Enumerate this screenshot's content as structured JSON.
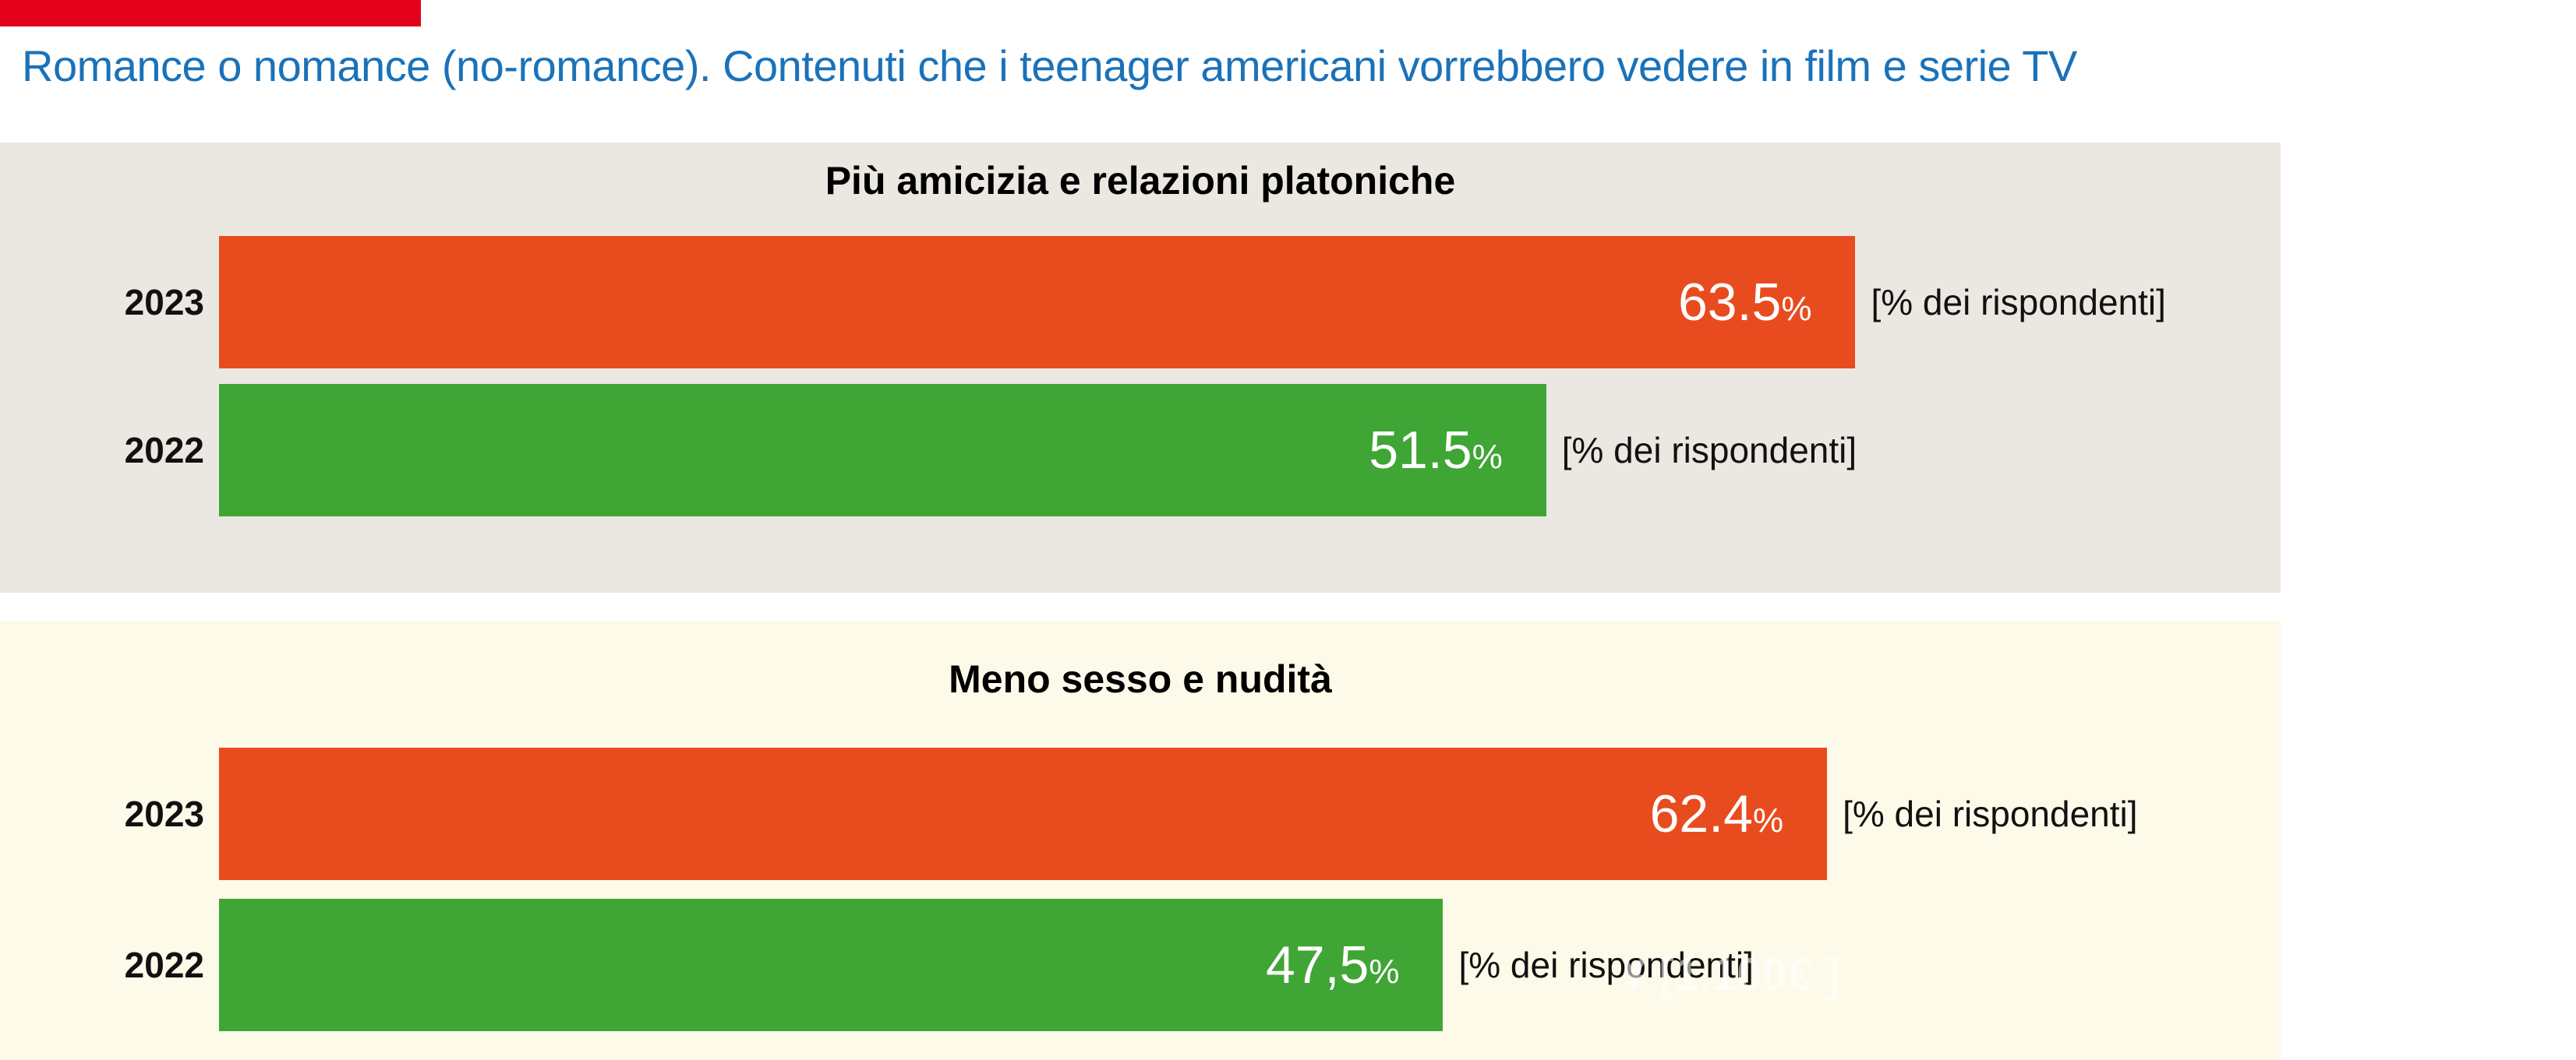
{
  "header": {
    "title": "Romance o nomance (no-romance). Contenuti che i teenager americani vorrebbero vedere in film e serie TV"
  },
  "colors": {
    "accent": "#e3001b",
    "title": "#1a72b9",
    "bar_2023": "#e84c1e",
    "bar_2022": "#3fa535",
    "panel_0_bg": "#ebe7e1",
    "panel_1_bg": "#fdfae9"
  },
  "watermark": "¥ [1.100€ ]",
  "chart_data": [
    {
      "type": "bar",
      "orientation": "horizontal",
      "title": "Più amicizia e relazioni platoniche",
      "categories": [
        "2023",
        "2022"
      ],
      "values": [
        63.5,
        51.5
      ],
      "value_labels": [
        "63.5",
        "51.5"
      ],
      "value_suffix": "%",
      "unit_label": "[% dei rispondenti]",
      "xlim": [
        0,
        80
      ]
    },
    {
      "type": "bar",
      "orientation": "horizontal",
      "title": "Meno sesso e nudità",
      "categories": [
        "2023",
        "2022"
      ],
      "values": [
        62.4,
        47.5
      ],
      "value_labels": [
        "62.4",
        "47,5"
      ],
      "value_suffix": "%",
      "unit_label": "[% dei rispondenti]",
      "xlim": [
        0,
        80
      ]
    }
  ]
}
